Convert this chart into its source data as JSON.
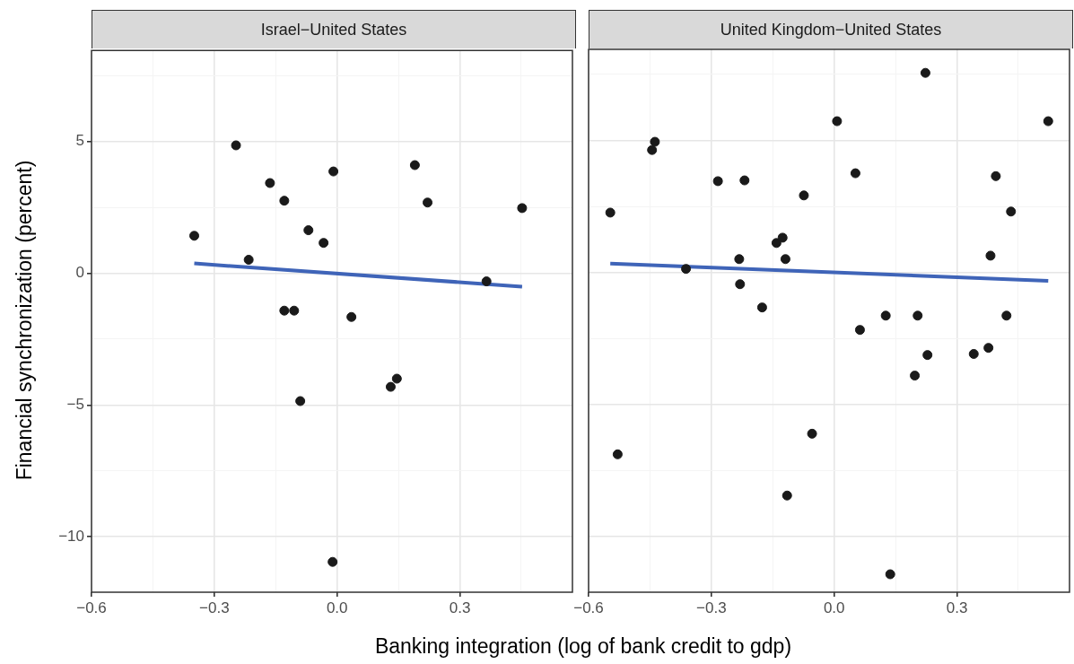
{
  "chart_data": [
    {
      "type": "scatter",
      "title": "Israel−United States",
      "xlabel": "Banking integration (log of bank credit to gdp)",
      "ylabel": "Financial synchronization (percent)",
      "xlim": [
        -0.6,
        0.575
      ],
      "ylim": [
        -12.1,
        8.45
      ],
      "xticks": [
        {
          "value": -0.6,
          "label": "−0.6"
        },
        {
          "value": -0.3,
          "label": "−0.3"
        },
        {
          "value": 0,
          "label": "0.0"
        },
        {
          "value": 0.3,
          "label": "0.3"
        },
        {
          "value": -0.45,
          "label": null
        },
        {
          "value": -0.15,
          "label": null
        },
        {
          "value": 0.15,
          "label": null
        },
        {
          "value": 0.45,
          "label": null
        }
      ],
      "yticks": [
        {
          "value": -10,
          "label": "−10"
        },
        {
          "value": -5,
          "label": "−5"
        },
        {
          "value": 0,
          "label": "0"
        },
        {
          "value": 5,
          "label": "5"
        },
        {
          "value": -7.5,
          "label": null
        },
        {
          "value": -2.5,
          "label": null
        },
        {
          "value": 2.5,
          "label": null
        },
        {
          "value": 7.5,
          "label": null
        }
      ],
      "grid": true,
      "legend": false,
      "marker": "circle",
      "series": [
        {
          "type": "scatter",
          "color": "#1a1a1a",
          "x": [
            -0.349,
            -0.247,
            -0.216,
            -0.164,
            -0.129,
            -0.129,
            -0.105,
            -0.07,
            -0.09,
            -0.033,
            -0.009,
            -0.011,
            0.035,
            0.131,
            0.146,
            0.19,
            0.221,
            0.365,
            0.452
          ],
          "values": [
            1.42,
            4.85,
            0.51,
            3.42,
            2.75,
            -1.42,
            -1.42,
            1.63,
            -4.85,
            1.15,
            3.86,
            -10.95,
            -1.66,
            -4.31,
            -4.0,
            4.1,
            2.68,
            -0.31,
            2.47
          ]
        },
        {
          "type": "line",
          "marker": "none",
          "color": "#3f64b8",
          "x": [
            -0.349,
            0.452
          ],
          "values": [
            0.37,
            -0.51
          ]
        }
      ]
    },
    {
      "type": "scatter",
      "title": "United Kingdom−United States",
      "xlim": [
        -0.6,
        0.575
      ],
      "ylim": [
        -12.1,
        8.45
      ],
      "tick_labels": "x",
      "xticks": [
        {
          "value": -0.6,
          "label": "−0.6"
        },
        {
          "value": -0.3,
          "label": "−0.3"
        },
        {
          "value": 0,
          "label": "0.0"
        },
        {
          "value": 0.3,
          "label": "0.3"
        },
        {
          "value": -0.45,
          "label": null
        },
        {
          "value": -0.15,
          "label": null
        },
        {
          "value": 0.15,
          "label": null
        },
        {
          "value": 0.45,
          "label": null
        }
      ],
      "yticks": [
        -10,
        -5,
        0,
        5,
        {
          "value": -7.5,
          "label": null
        },
        {
          "value": -2.5,
          "label": null
        },
        {
          "value": 2.5,
          "label": null
        },
        {
          "value": 7.5,
          "label": null
        }
      ],
      "grid": true,
      "legend": false,
      "marker": "circle",
      "series": [
        {
          "type": "scatter",
          "color": "#1a1a1a",
          "x": [
            -0.547,
            -0.529,
            -0.438,
            -0.445,
            -0.362,
            -0.284,
            -0.219,
            -0.232,
            -0.23,
            -0.176,
            -0.141,
            -0.126,
            -0.119,
            -0.115,
            -0.074,
            -0.054,
            0.007,
            0.052,
            0.063,
            0.126,
            0.137,
            0.197,
            0.204,
            0.223,
            0.228,
            0.341,
            0.377,
            0.382,
            0.395,
            0.421,
            0.432,
            0.523
          ],
          "values": [
            2.27,
            -6.88,
            4.95,
            4.64,
            0.14,
            3.46,
            3.49,
            0.51,
            -0.44,
            -1.32,
            1.12,
            1.32,
            0.51,
            -8.44,
            2.92,
            -6.1,
            5.73,
            3.76,
            -2.17,
            -1.63,
            -11.42,
            -3.9,
            -1.63,
            7.56,
            -3.12,
            -3.08,
            -2.85,
            0.64,
            3.65,
            -1.63,
            2.31,
            5.73
          ]
        },
        {
          "type": "line",
          "marker": "none",
          "color": "#3f64b8",
          "x": [
            -0.547,
            0.523
          ],
          "values": [
            0.34,
            -0.31
          ]
        }
      ]
    }
  ]
}
